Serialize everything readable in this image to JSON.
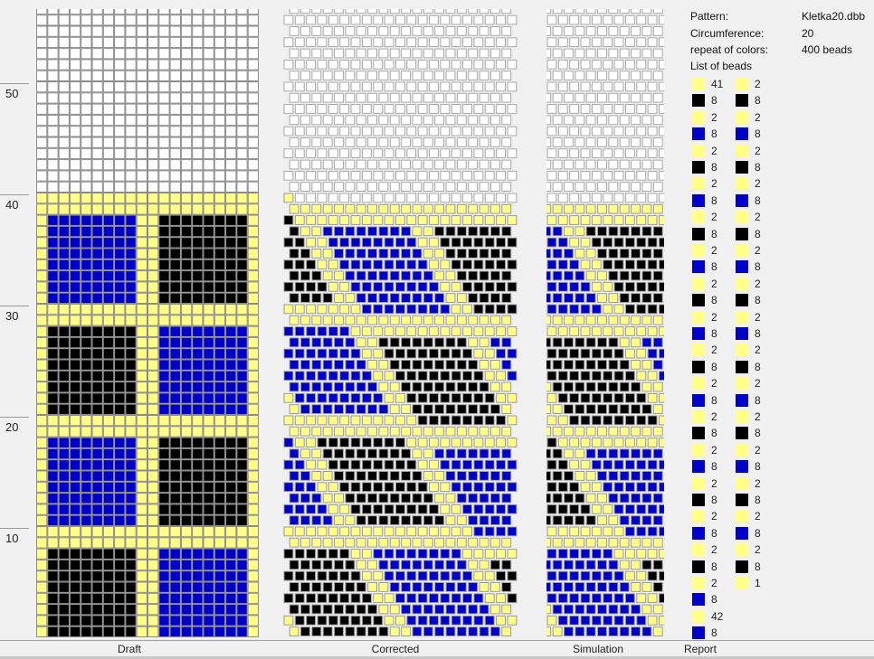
{
  "colors": {
    "Y": "#ffff88",
    "K": "#000000",
    "B": "#0000c8",
    "empty": "#ffffff",
    "grid": "#8c8c8c"
  },
  "axis": {
    "labels": [
      "50",
      "40",
      "30",
      "20",
      "10"
    ]
  },
  "panels": {
    "draft": "Draft",
    "corrected": "Corrected",
    "simulation": "Simulation",
    "report": "Report"
  },
  "report": {
    "pattern_label": "Pattern:",
    "pattern_value": "Kletka20.dbb",
    "circumference_label": "Circumference:",
    "circumference_value": "20",
    "repeat_label": "repeat of colors:",
    "repeat_value": "400 beads",
    "list_label": "List of beads",
    "column1": [
      {
        "c": "Y",
        "n": "41"
      },
      {
        "c": "K",
        "n": "8"
      },
      {
        "c": "Y",
        "n": "2"
      },
      {
        "c": "B",
        "n": "8"
      },
      {
        "c": "Y",
        "n": "2"
      },
      {
        "c": "K",
        "n": "8"
      },
      {
        "c": "Y",
        "n": "2"
      },
      {
        "c": "B",
        "n": "8"
      },
      {
        "c": "Y",
        "n": "2"
      },
      {
        "c": "K",
        "n": "8"
      },
      {
        "c": "Y",
        "n": "2"
      },
      {
        "c": "B",
        "n": "8"
      },
      {
        "c": "Y",
        "n": "2"
      },
      {
        "c": "K",
        "n": "8"
      },
      {
        "c": "Y",
        "n": "2"
      },
      {
        "c": "B",
        "n": "8"
      },
      {
        "c": "Y",
        "n": "2"
      },
      {
        "c": "K",
        "n": "8"
      },
      {
        "c": "Y",
        "n": "2"
      },
      {
        "c": "B",
        "n": "8"
      },
      {
        "c": "Y",
        "n": "2"
      },
      {
        "c": "K",
        "n": "8"
      },
      {
        "c": "Y",
        "n": "2"
      },
      {
        "c": "B",
        "n": "8"
      },
      {
        "c": "Y",
        "n": "2"
      },
      {
        "c": "K",
        "n": "8"
      },
      {
        "c": "Y",
        "n": "2"
      },
      {
        "c": "B",
        "n": "8"
      },
      {
        "c": "Y",
        "n": "2"
      },
      {
        "c": "K",
        "n": "8"
      },
      {
        "c": "Y",
        "n": "2"
      },
      {
        "c": "B",
        "n": "8"
      },
      {
        "c": "Y",
        "n": "42"
      },
      {
        "c": "B",
        "n": "8"
      }
    ],
    "column2": [
      {
        "c": "Y",
        "n": "2"
      },
      {
        "c": "K",
        "n": "8"
      },
      {
        "c": "Y",
        "n": "2"
      },
      {
        "c": "B",
        "n": "8"
      },
      {
        "c": "Y",
        "n": "2"
      },
      {
        "c": "K",
        "n": "8"
      },
      {
        "c": "Y",
        "n": "2"
      },
      {
        "c": "B",
        "n": "8"
      },
      {
        "c": "Y",
        "n": "2"
      },
      {
        "c": "K",
        "n": "8"
      },
      {
        "c": "Y",
        "n": "2"
      },
      {
        "c": "B",
        "n": "8"
      },
      {
        "c": "Y",
        "n": "2"
      },
      {
        "c": "K",
        "n": "8"
      },
      {
        "c": "Y",
        "n": "2"
      },
      {
        "c": "B",
        "n": "8"
      },
      {
        "c": "Y",
        "n": "2"
      },
      {
        "c": "K",
        "n": "8"
      },
      {
        "c": "Y",
        "n": "2"
      },
      {
        "c": "B",
        "n": "8"
      },
      {
        "c": "Y",
        "n": "2"
      },
      {
        "c": "K",
        "n": "8"
      },
      {
        "c": "Y",
        "n": "2"
      },
      {
        "c": "B",
        "n": "8"
      },
      {
        "c": "Y",
        "n": "2"
      },
      {
        "c": "K",
        "n": "8"
      },
      {
        "c": "Y",
        "n": "2"
      },
      {
        "c": "B",
        "n": "8"
      },
      {
        "c": "Y",
        "n": "2"
      },
      {
        "c": "K",
        "n": "8"
      },
      {
        "c": "Y",
        "n": "1"
      }
    ]
  },
  "draft_rows_top_to_bottom": [
    "YYYYYYYYYYYYYYYYYYYY",
    "YYYYYYYYYYYYYYYYYYYY",
    "YBBBBBBBBYYKKKKKKKKY",
    "YBBBBBBBBYYKKKKKKKKY",
    "YBBBBBBBBYYKKKKKKKKY",
    "YBBBBBBBBYYKKKKKKKKY",
    "YBBBBBBBBYYKKKKKKKKY",
    "YBBBBBBBBYYKKKKKKKKY",
    "YBBBBBBBBYYKKKKKKKKY",
    "YBBBBBBBBYYKKKKKKKKY",
    "YYYYYYYYYYYYYYYYYYYY",
    "YYYYYYYYYYYYYYYYYYYY",
    "YKKKKKKKKYYBBBBBBBBY",
    "YKKKKKKKKYYBBBBBBBBY",
    "YKKKKKKKKYYBBBBBBBBY",
    "YKKKKKKKKYYBBBBBBBBY",
    "YKKKKKKKKYYBBBBBBBBY",
    "YKKKKKKKKYYBBBBBBBBY",
    "YKKKKKKKKYYBBBBBBBBY",
    "YKKKKKKKKYYBBBBBBBBY",
    "YYYYYYYYYYYYYYYYYYYY",
    "YYYYYYYYYYYYYYYYYYYY",
    "YBBBBBBBBYYKKKKKKKKY",
    "YBBBBBBBBYYKKKKKKKKY",
    "YBBBBBBBBYYKKKKKKKKY",
    "YBBBBBBBBYYKKKKKKKKY",
    "YBBBBBBBBYYKKKKKKKKY",
    "YBBBBBBBBYYKKKKKKKKY",
    "YBBBBBBBBYYKKKKKKKKY",
    "YBBBBBBBBYYKKKKKKKKY",
    "YYYYYYYYYYYYYYYYYYYY",
    "YYYYYYYYYYYYYYYYYYYY",
    "YKKKKKKKKYYBBBBBBBBY",
    "YKKKKKKKKYYBBBBBBBBY",
    "YKKKKKKKKYYBBBBBBBBY",
    "YKKKKKKKKYYBBBBBBBBY",
    "YKKKKKKKKYYBBBBBBBBY",
    "YKKKKKKKKYYBBBBBBBBY",
    "YKKKKKKKKYYBBBBBBBBY",
    "YKKKKKKKKYYBBBBBBBBY"
  ]
}
